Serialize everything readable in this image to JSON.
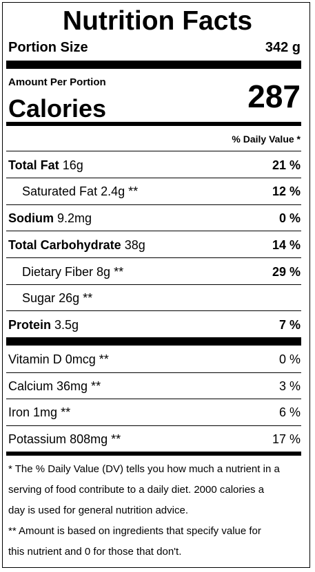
{
  "title": "Nutrition Facts",
  "portion": {
    "label": "Portion Size",
    "value": "342 g"
  },
  "amount_per_portion": "Amount Per Portion",
  "calories": {
    "label": "Calories",
    "value": "287"
  },
  "daily_value_header": "% Daily Value *",
  "nutrients": [
    {
      "name": "Total Fat",
      "amount": "16g",
      "dv": "21 %"
    },
    {
      "name": "Saturated Fat",
      "amount": "2.4g **",
      "dv": "12 %"
    },
    {
      "name": "Sodium",
      "amount": "9.2mg",
      "dv": "0 %"
    },
    {
      "name": "Total Carbohydrate",
      "amount": "38g",
      "dv": "14 %"
    },
    {
      "name": "Dietary Fiber",
      "amount": "8g **",
      "dv": "29 %"
    },
    {
      "name": "Sugar",
      "amount": "26g **",
      "dv": ""
    },
    {
      "name": "Protein",
      "amount": "3.5g",
      "dv": "7 %"
    }
  ],
  "vitamins": [
    {
      "name": "Vitamin D",
      "amount": "0mcg **",
      "dv": "0 %"
    },
    {
      "name": "Calcium",
      "amount": "36mg **",
      "dv": "3 %"
    },
    {
      "name": "Iron",
      "amount": "1mg **",
      "dv": "6 %"
    },
    {
      "name": "Potassium",
      "amount": "808mg **",
      "dv": "17 %"
    }
  ],
  "footnotes": {
    "dv_line1": "* The % Daily Value (DV) tells you how much a nutrient in a",
    "dv_line2": "serving of food contribute to a daily diet. 2000 calories a",
    "dv_line3": "day is used for general nutrition advice.",
    "amount_line1": "** Amount is based on ingredients that specify value for",
    "amount_line2": "this nutrient and 0 for those that don't."
  }
}
